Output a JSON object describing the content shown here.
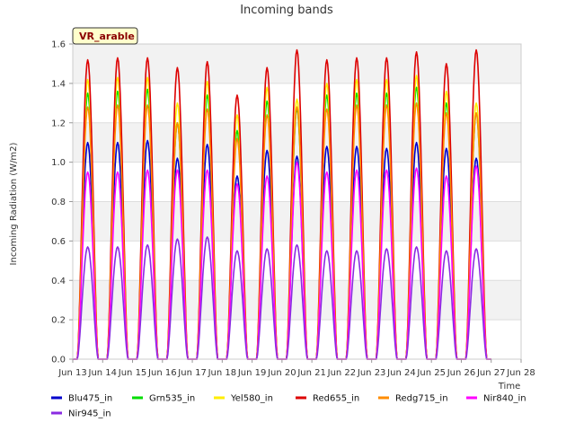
{
  "chart_data": {
    "type": "line",
    "title": "Incoming bands",
    "xlabel": "Time",
    "ylabel": "Incoming Radiation (W/m2)",
    "badge": "VR_arable",
    "xlim": [
      13,
      28
    ],
    "ylim": [
      0,
      1.6
    ],
    "x_ticks": [
      {
        "value": 13,
        "label": "Jun 13"
      },
      {
        "value": 14,
        "label": "Jun 14"
      },
      {
        "value": 15,
        "label": "Jun 15"
      },
      {
        "value": 16,
        "label": "Jun 16"
      },
      {
        "value": 17,
        "label": "Jun 17"
      },
      {
        "value": 18,
        "label": "Jun 18"
      },
      {
        "value": 19,
        "label": "Jun 19"
      },
      {
        "value": 20,
        "label": "Jun 20"
      },
      {
        "value": 21,
        "label": "Jun 21"
      },
      {
        "value": 22,
        "label": "Jun 22"
      },
      {
        "value": 23,
        "label": "Jun 23"
      },
      {
        "value": 24,
        "label": "Jun 24"
      },
      {
        "value": 25,
        "label": "Jun 25"
      },
      {
        "value": 26,
        "label": "Jun 26"
      },
      {
        "value": 27,
        "label": "Jun 27"
      },
      {
        "value": 28,
        "label": "Jun 28"
      }
    ],
    "y_ticks": [
      {
        "value": 0.0,
        "label": "0.0"
      },
      {
        "value": 0.2,
        "label": "0.2"
      },
      {
        "value": 0.4,
        "label": "0.4"
      },
      {
        "value": 0.6,
        "label": "0.6"
      },
      {
        "value": 0.8,
        "label": "0.8"
      },
      {
        "value": 1.0,
        "label": "1.0"
      },
      {
        "value": 1.2,
        "label": "1.2"
      },
      {
        "value": 1.4,
        "label": "1.4"
      },
      {
        "value": 1.6,
        "label": "1.6"
      }
    ],
    "days": [
      13.5,
      14.5,
      15.5,
      16.5,
      17.5,
      18.5,
      19.5,
      20.5,
      21.5,
      22.5,
      23.5,
      24.5,
      25.5,
      26.5
    ],
    "series": [
      {
        "name": "Blu475_in",
        "color": "#0000cc",
        "daily_peaks": [
          1.1,
          1.1,
          1.11,
          1.02,
          1.09,
          0.93,
          1.06,
          1.03,
          1.08,
          1.08,
          1.07,
          1.1,
          1.07,
          1.02
        ]
      },
      {
        "name": "Grn535_in",
        "color": "#00dd00",
        "daily_peaks": [
          1.35,
          1.36,
          1.37,
          1.2,
          1.34,
          1.16,
          1.31,
          1.27,
          1.34,
          1.35,
          1.35,
          1.38,
          1.3,
          1.25
        ]
      },
      {
        "name": "Yel580_in",
        "color": "#ffee00",
        "daily_peaks": [
          1.42,
          1.43,
          1.43,
          1.3,
          1.41,
          1.24,
          1.38,
          1.32,
          1.4,
          1.42,
          1.42,
          1.44,
          1.36,
          1.3
        ]
      },
      {
        "name": "Red655_in",
        "color": "#dd0000",
        "daily_peaks": [
          1.52,
          1.53,
          1.53,
          1.48,
          1.51,
          1.34,
          1.48,
          1.57,
          1.52,
          1.53,
          1.53,
          1.56,
          1.5,
          1.57
        ]
      },
      {
        "name": "Redg715_in",
        "color": "#ff8c00",
        "daily_peaks": [
          1.28,
          1.29,
          1.29,
          1.2,
          1.27,
          1.12,
          1.24,
          1.28,
          1.27,
          1.29,
          1.29,
          1.3,
          1.25,
          1.25
        ]
      },
      {
        "name": "Nir840_in",
        "color": "#ff00ff",
        "daily_peaks": [
          0.95,
          0.95,
          0.96,
          0.96,
          0.96,
          0.89,
          0.93,
          1.0,
          0.95,
          0.96,
          0.96,
          0.97,
          0.93,
          0.98
        ]
      },
      {
        "name": "Nir945_in",
        "color": "#8a2be2",
        "daily_peaks": [
          0.57,
          0.57,
          0.58,
          0.61,
          0.62,
          0.55,
          0.56,
          0.58,
          0.55,
          0.55,
          0.56,
          0.57,
          0.55,
          0.56
        ]
      }
    ]
  }
}
